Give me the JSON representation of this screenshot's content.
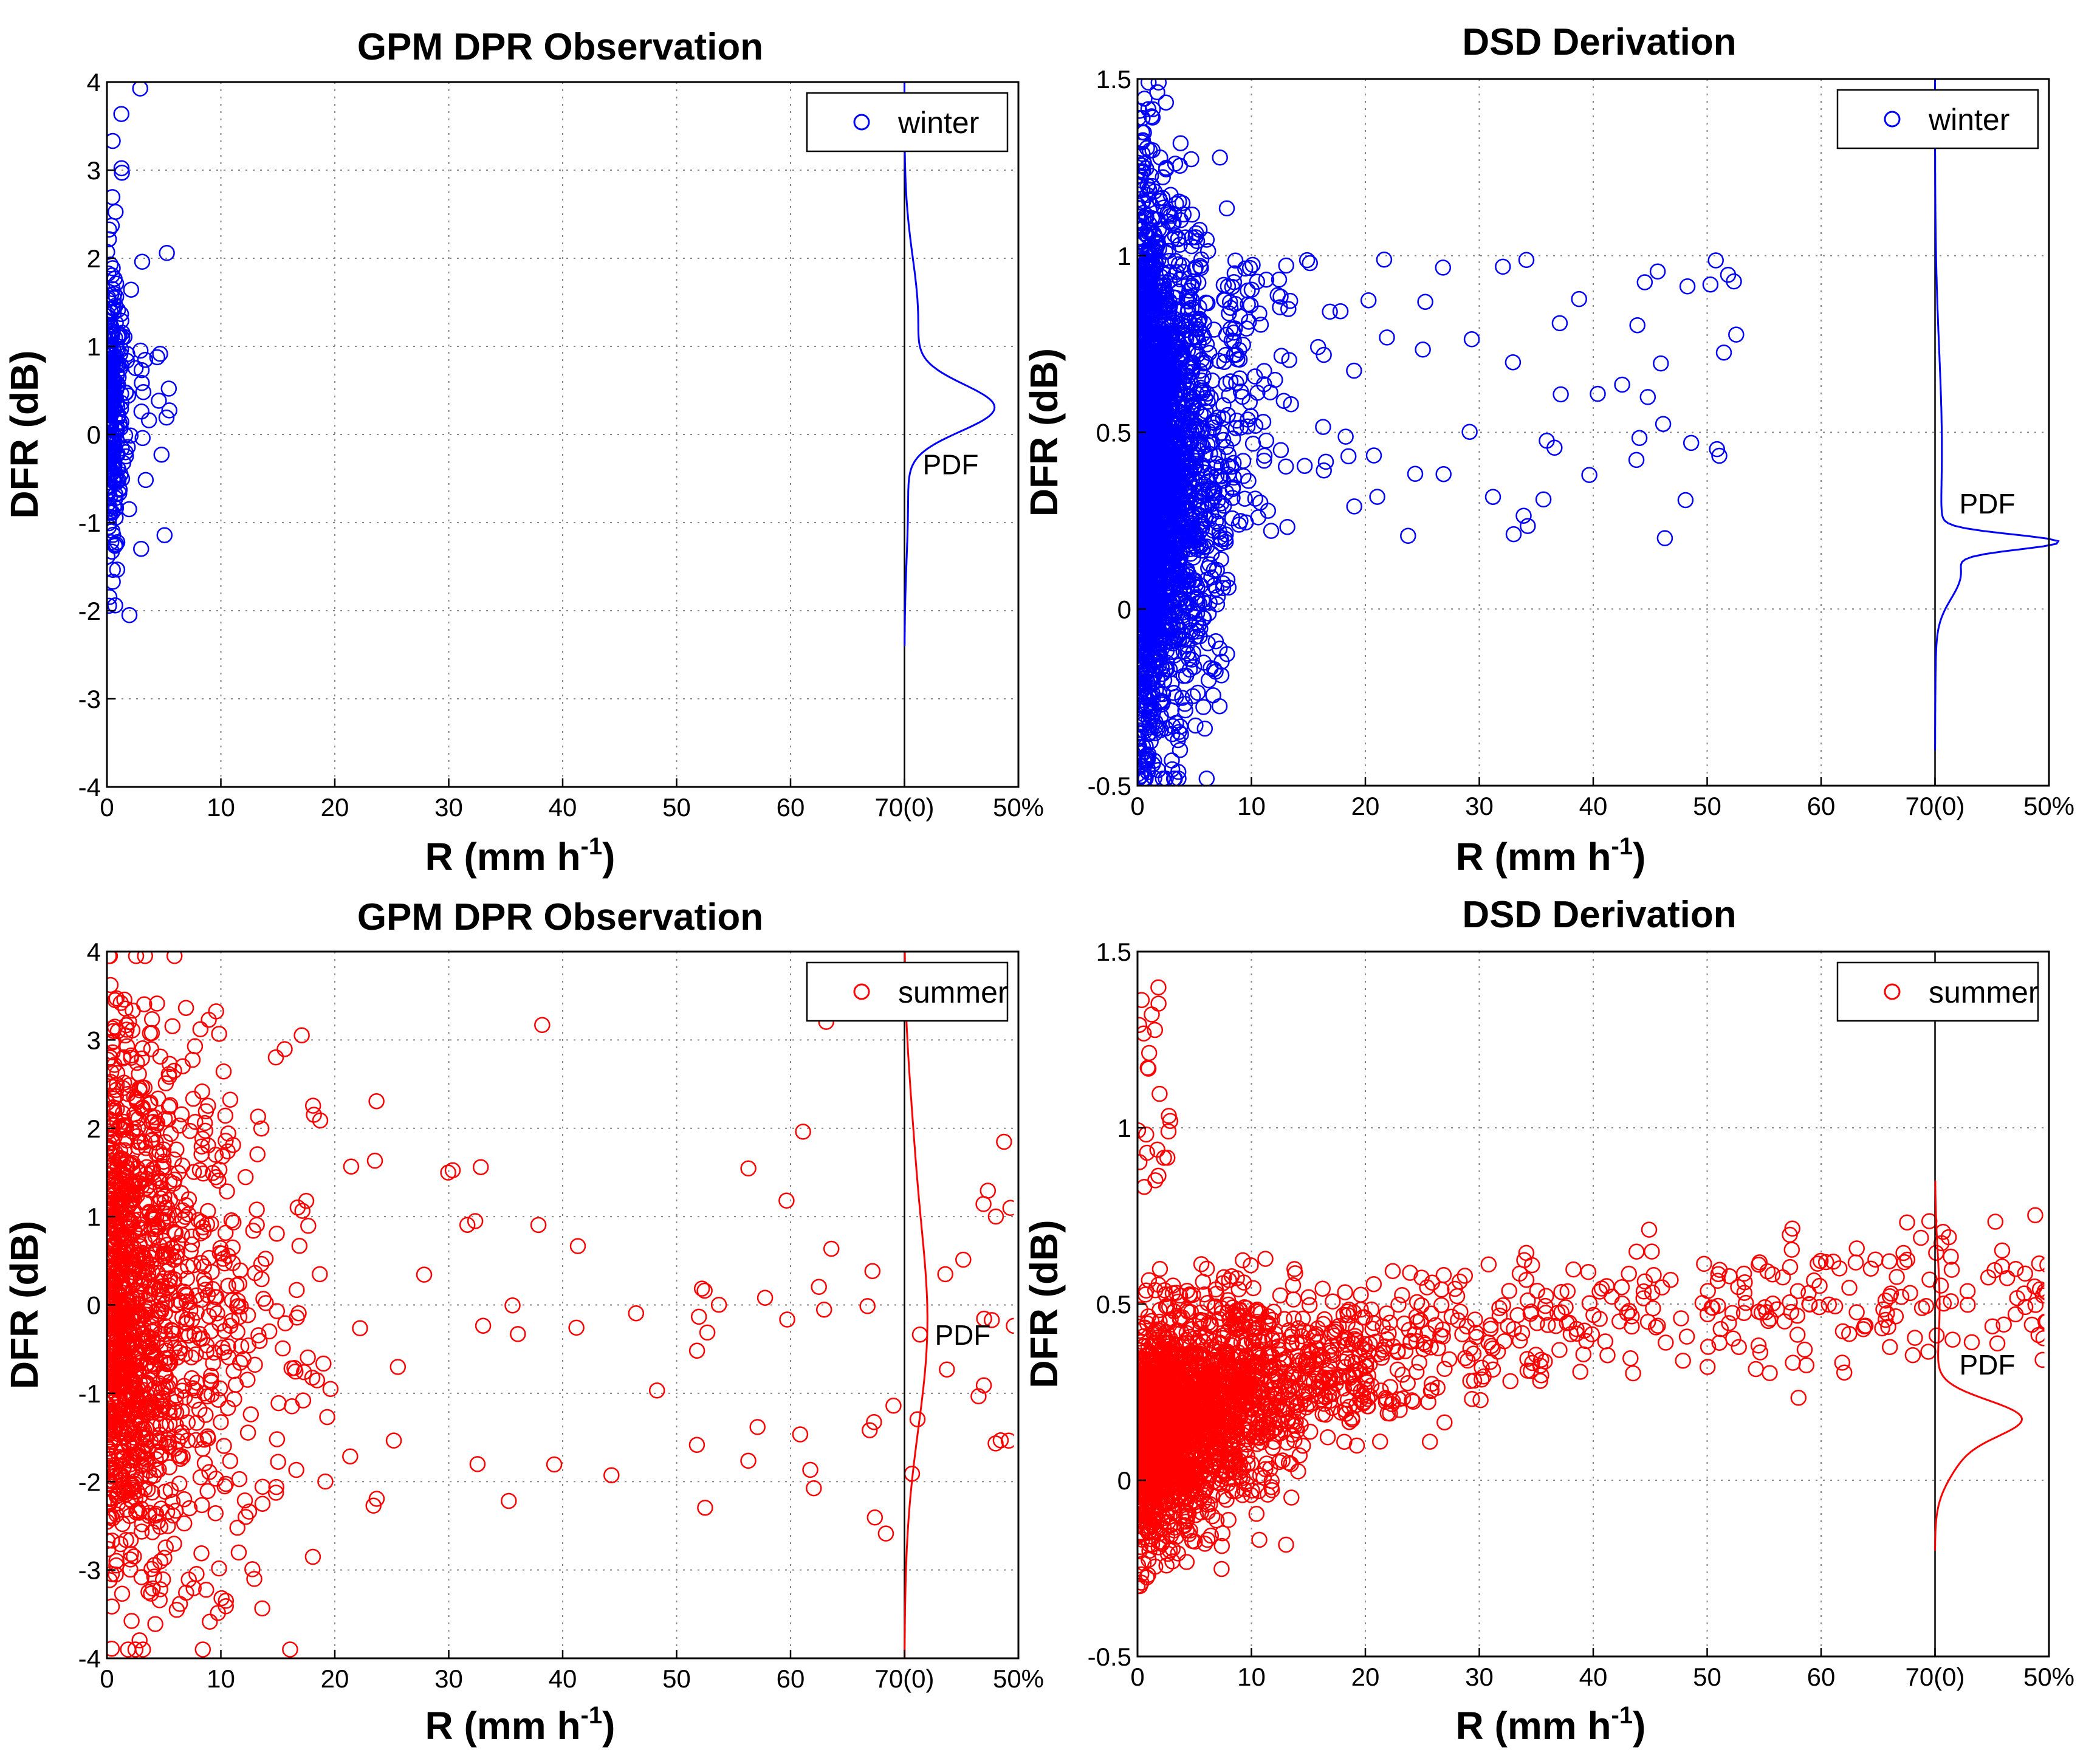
{
  "chart_data": [
    {
      "type": "scatter",
      "title": "GPM DPR Observation",
      "xlabel": "R (mm h",
      "xlabel_sup": "-1",
      "xlabel_end": ")",
      "ylabel": "DFR (dB)",
      "xlim": [
        0,
        80
      ],
      "ylim": [
        -4,
        4
      ],
      "xticks": [
        "0",
        "10",
        "20",
        "30",
        "40",
        "50",
        "60",
        "70(0)",
        "50%"
      ],
      "yticks": [
        "-4",
        "-3",
        "-2",
        "-1",
        "0",
        "1",
        "2",
        "3",
        "4"
      ],
      "legend": {
        "label": "winter",
        "position": "top-right"
      },
      "pdf_label": "PDF",
      "color": "#0000ff",
      "series": [
        {
          "name": "winter",
          "x_range": [
            0,
            6
          ],
          "y_range": [
            -2.1,
            4.0
          ],
          "count": 350
        }
      ],
      "pdf": {
        "peak_dfr": 0.3,
        "peak_percent": 37,
        "dfr_range": [
          -2.4,
          4.0
        ]
      }
    },
    {
      "type": "scatter",
      "title": "DSD Derivation",
      "xlabel": "R (mm h",
      "xlabel_sup": "-1",
      "xlabel_end": ")",
      "ylabel": "DFR (dB)",
      "xlim": [
        0,
        80
      ],
      "ylim": [
        -0.5,
        1.5
      ],
      "xticks": [
        "0",
        "10",
        "20",
        "30",
        "40",
        "50",
        "60",
        "70(0)",
        "50%"
      ],
      "yticks": [
        "-0.5",
        "0",
        "0.5",
        "1",
        "1.5"
      ],
      "legend": {
        "label": "winter",
        "position": "top-right"
      },
      "pdf_label": "PDF",
      "color": "#0000ff",
      "series": [
        {
          "name": "winter",
          "x_range": [
            0,
            56
          ],
          "y_range": [
            -0.5,
            1.5
          ],
          "count": 3000
        }
      ],
      "pdf": {
        "peak_dfr": 0.19,
        "peak_percent": 48,
        "dfr_range": [
          -0.4,
          1.5
        ]
      }
    },
    {
      "type": "scatter",
      "title": "GPM DPR Observation",
      "xlabel": "R (mm h",
      "xlabel_sup": "-1",
      "xlabel_end": ")",
      "ylabel": "DFR (dB)",
      "xlim": [
        0,
        80
      ],
      "ylim": [
        -4,
        4
      ],
      "xticks": [
        "0",
        "10",
        "20",
        "30",
        "40",
        "50",
        "60",
        "70(0)",
        "50%"
      ],
      "yticks": [
        "-4",
        "-3",
        "-2",
        "-1",
        "0",
        "1",
        "2",
        "3",
        "4"
      ],
      "legend": {
        "label": "summer",
        "position": "top-right"
      },
      "pdf_label": "PDF",
      "color": "#ff0000",
      "series": [
        {
          "name": "summer",
          "x_range": [
            0,
            80
          ],
          "y_range": [
            -4,
            4
          ],
          "count": 1500
        }
      ],
      "pdf": {
        "peak_dfr": -0.2,
        "peak_percent": 10,
        "dfr_range": [
          -4,
          4
        ]
      }
    },
    {
      "type": "scatter",
      "title": "DSD Derivation",
      "xlabel": "R (mm h",
      "xlabel_sup": "-1",
      "xlabel_end": ")",
      "ylabel": "DFR (dB)",
      "xlim": [
        0,
        80
      ],
      "ylim": [
        -0.5,
        1.5
      ],
      "xticks": [
        "0",
        "10",
        "20",
        "30",
        "40",
        "50",
        "60",
        "70(0)",
        "50%"
      ],
      "yticks": [
        "-0.5",
        "0",
        "0.5",
        "1",
        "1.5"
      ],
      "legend": {
        "label": "summer",
        "position": "top-right"
      },
      "pdf_label": "PDF",
      "color": "#ff0000",
      "series": [
        {
          "name": "summer",
          "x_range": [
            0,
            80
          ],
          "y_range": [
            -0.3,
            1.45
          ],
          "count": 2600
        }
      ],
      "pdf": {
        "peak_dfr": 0.18,
        "peak_percent": 30,
        "dfr_range": [
          -0.2,
          0.85
        ]
      }
    }
  ]
}
